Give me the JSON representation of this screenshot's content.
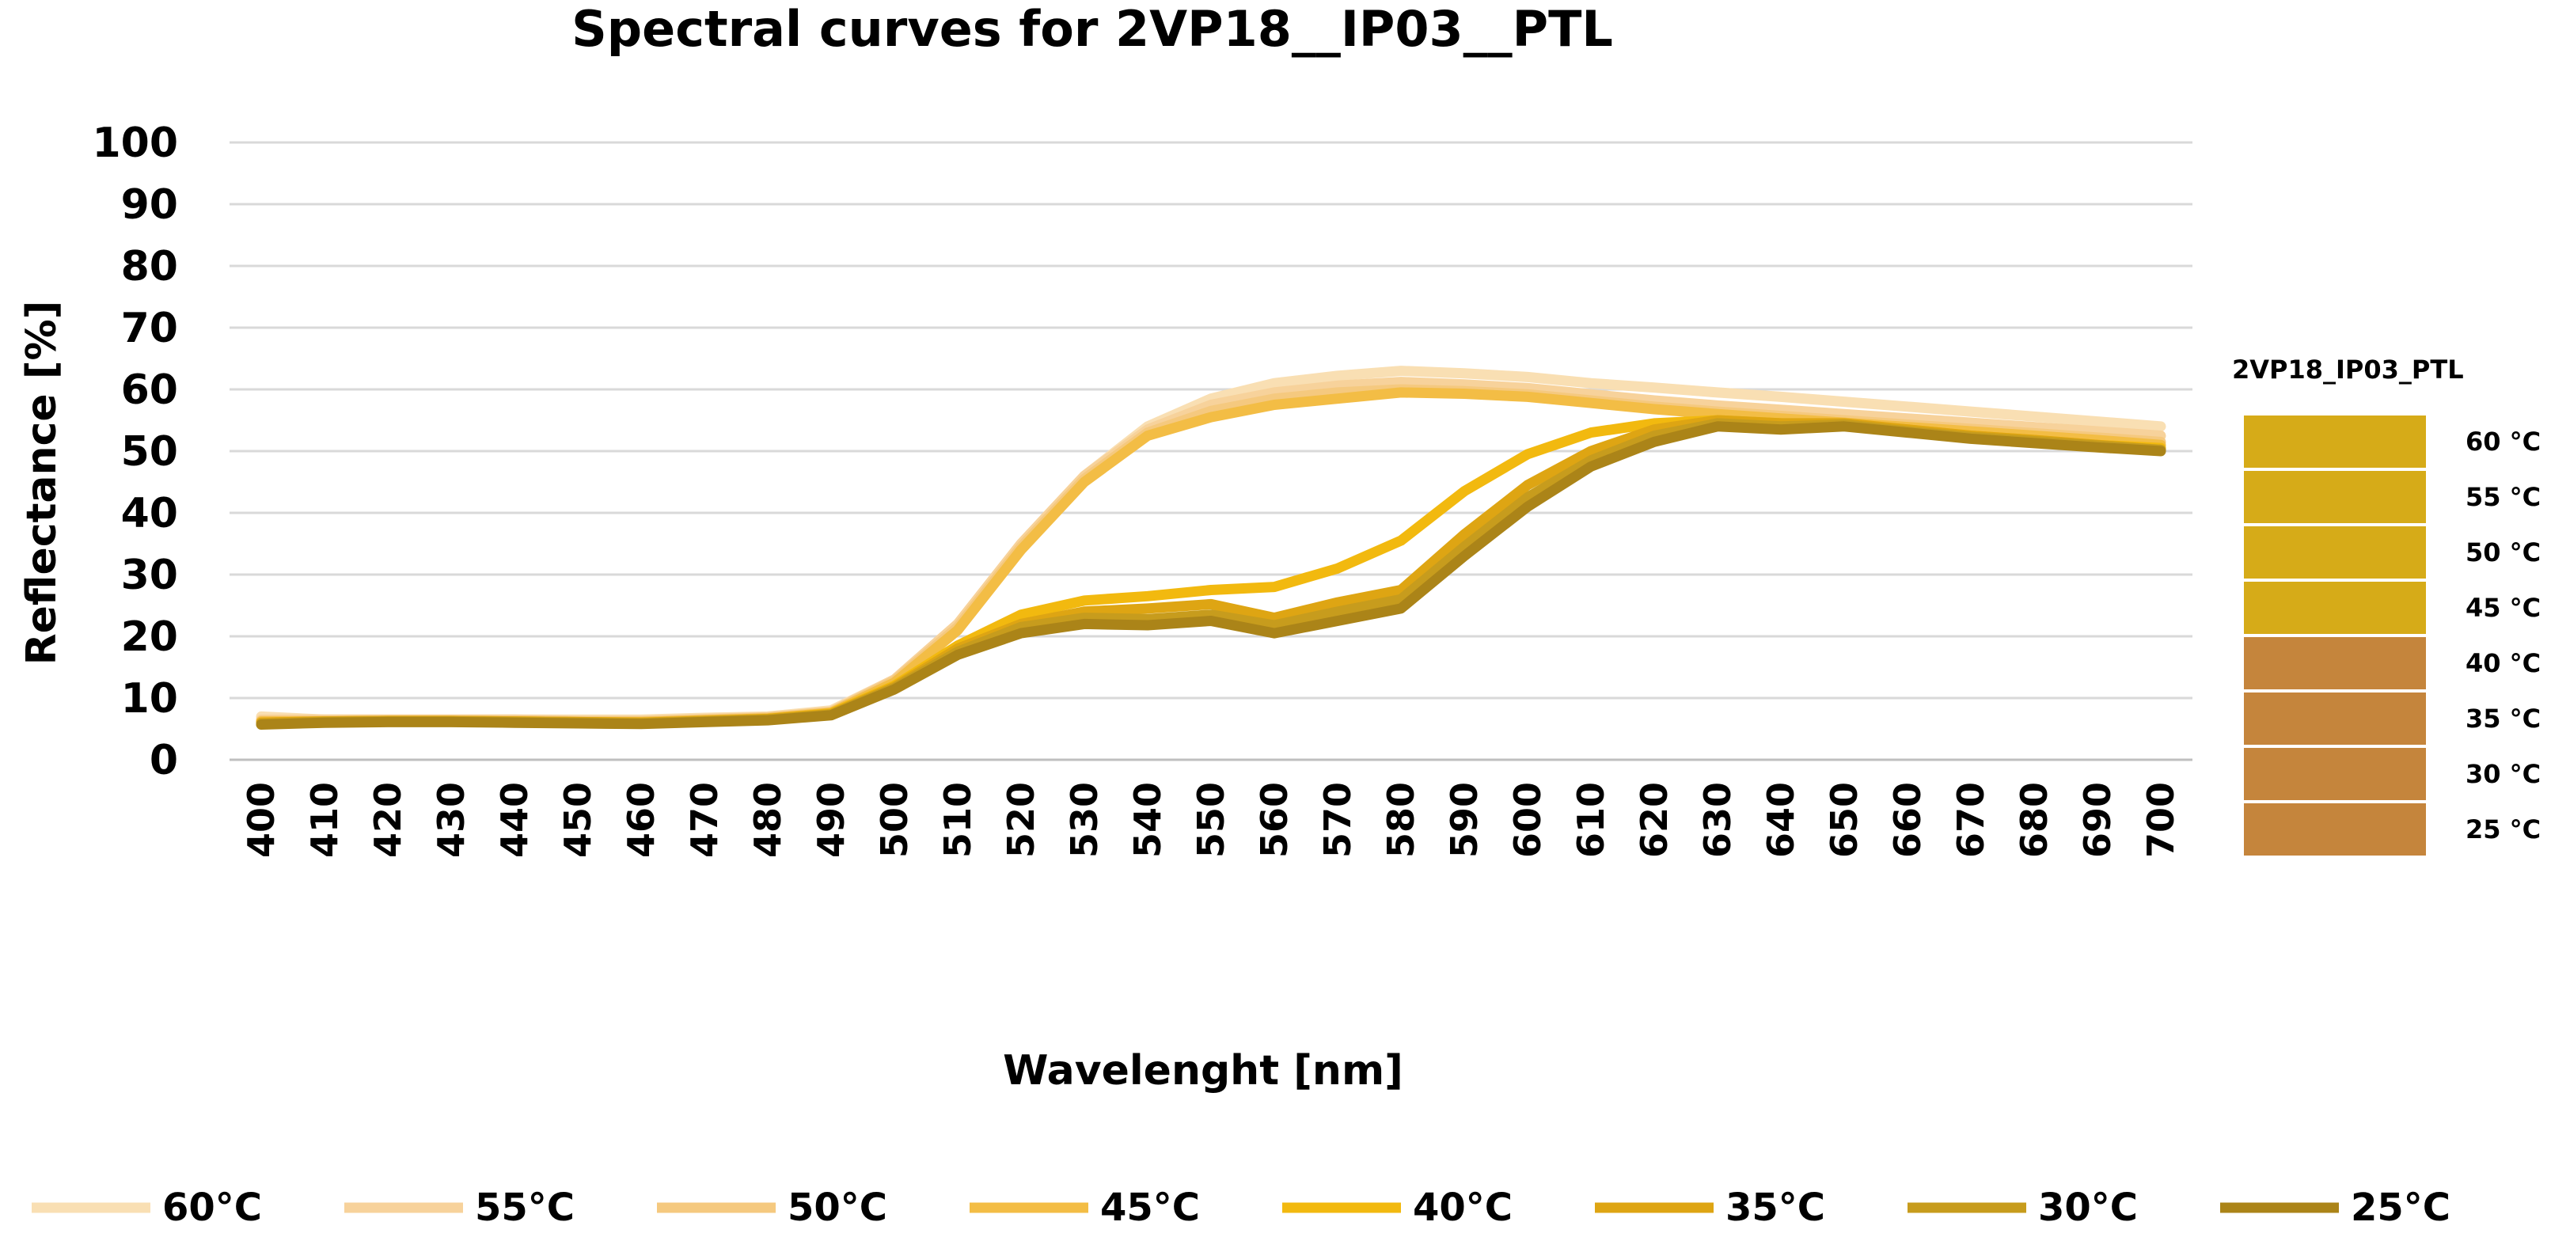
{
  "chart_data": {
    "type": "line",
    "title": "Spectral curves for 2VP18__IP03__PTL",
    "xlabel": "Wavelenght [nm]",
    "ylabel": "Reflectance [%]",
    "ylim": [
      0,
      100
    ],
    "yticks": [
      0,
      10,
      20,
      30,
      40,
      50,
      60,
      70,
      80,
      90,
      100
    ],
    "grid": true,
    "legend_position": "bottom",
    "x": [
      400,
      410,
      420,
      430,
      440,
      450,
      460,
      470,
      480,
      490,
      500,
      510,
      520,
      530,
      540,
      550,
      560,
      570,
      580,
      590,
      600,
      610,
      620,
      630,
      640,
      650,
      660,
      670,
      680,
      690,
      700
    ],
    "series": [
      {
        "name": "60°C",
        "color": "#f9dfb3",
        "values": [
          7,
          6.5,
          6.5,
          6.5,
          6.5,
          6.5,
          6.5,
          6.8,
          7,
          8,
          13,
          22,
          35,
          46,
          54,
          58.5,
          61,
          62.2,
          63,
          62.6,
          62,
          61,
          60.3,
          59.5,
          58.8,
          58,
          57.2,
          56.4,
          55.6,
          54.8,
          54
        ]
      },
      {
        "name": "55°C",
        "color": "#f7d29b",
        "values": [
          6.5,
          6.5,
          6.5,
          6.5,
          6.5,
          6.3,
          6.3,
          6.6,
          6.9,
          7.8,
          13,
          22,
          35,
          46,
          53.5,
          57.5,
          59.5,
          60.6,
          61.2,
          60.8,
          60.2,
          59.2,
          58.2,
          57.4,
          56.7,
          56,
          55.3,
          54.6,
          53.9,
          53.2,
          52.5
        ]
      },
      {
        "name": "50°C",
        "color": "#f5c97f",
        "values": [
          6.3,
          6.3,
          6.3,
          6.3,
          6.3,
          6.2,
          6.2,
          6.5,
          6.8,
          7.7,
          12.8,
          21.5,
          34.5,
          45.5,
          53,
          56.5,
          58.5,
          59.5,
          60,
          59.7,
          59.2,
          58.2,
          57.2,
          56.4,
          55.7,
          55,
          54.3,
          53.6,
          52.9,
          52.2,
          51.5
        ]
      },
      {
        "name": "45°C",
        "color": "#f3bd45",
        "values": [
          6.2,
          6.2,
          6.2,
          6.2,
          6.2,
          6.1,
          6.1,
          6.4,
          6.7,
          7.6,
          12.5,
          21,
          34,
          45,
          52.5,
          55.5,
          57.5,
          58.5,
          59.5,
          59.3,
          58.8,
          57.8,
          56.8,
          56,
          55.3,
          54.6,
          53.9,
          53.2,
          52.5,
          51.8,
          51
        ]
      },
      {
        "name": "40°C",
        "color": "#f2b90f",
        "values": [
          6,
          6.2,
          6.3,
          6.3,
          6.2,
          6.1,
          6,
          6.3,
          6.6,
          7.5,
          12,
          18.5,
          23.5,
          25.8,
          26.5,
          27.5,
          28,
          31,
          35.5,
          43.5,
          49.5,
          53,
          54.5,
          55,
          54.5,
          54.2,
          53.5,
          52.5,
          51.8,
          51,
          50.5
        ]
      },
      {
        "name": "35°C",
        "color": "#dea513",
        "values": [
          6,
          6.2,
          6.3,
          6.3,
          6.2,
          6.1,
          6,
          6.3,
          6.6,
          7.4,
          11.8,
          18,
          22,
          24,
          24.5,
          25.2,
          23,
          25.5,
          27.5,
          36.5,
          44.5,
          50,
          53.5,
          55,
          54.5,
          54.5,
          53.5,
          52.5,
          51.8,
          51,
          50.2
        ]
      },
      {
        "name": "30°C",
        "color": "#c79c1d",
        "values": [
          5.8,
          6.1,
          6.2,
          6.2,
          6.1,
          6,
          5.9,
          6.2,
          6.5,
          7.3,
          11.6,
          17.5,
          21.5,
          23,
          22.8,
          23.5,
          21.8,
          24,
          26,
          34.5,
          42.5,
          48.5,
          52.5,
          54.5,
          54,
          54.3,
          53.2,
          52.3,
          51.6,
          50.9,
          50.2
        ]
      },
      {
        "name": "25°C",
        "color": "#ab8418",
        "values": [
          5.7,
          6,
          6.1,
          6.1,
          6,
          5.9,
          5.8,
          6.1,
          6.4,
          7.2,
          11.4,
          17,
          20.5,
          22,
          21.8,
          22.5,
          20.5,
          22.5,
          24.5,
          33,
          41,
          47.5,
          51.5,
          54,
          53.5,
          54,
          53,
          52,
          51.3,
          50.6,
          50
        ]
      }
    ]
  },
  "swatches": {
    "title": "2VP18_IP03_PTL",
    "items": [
      {
        "label": "60 °C",
        "color": "#d6ab18"
      },
      {
        "label": "55 °C",
        "color": "#d6ab18"
      },
      {
        "label": "50 °C",
        "color": "#d6ab18"
      },
      {
        "label": "45 °C",
        "color": "#d6ab18"
      },
      {
        "label": "40 °C",
        "color": "#c5853c"
      },
      {
        "label": "35 °C",
        "color": "#c5853c"
      },
      {
        "label": "30 °C",
        "color": "#c5853c"
      },
      {
        "label": "25 °C",
        "color": "#c5853c"
      }
    ]
  }
}
